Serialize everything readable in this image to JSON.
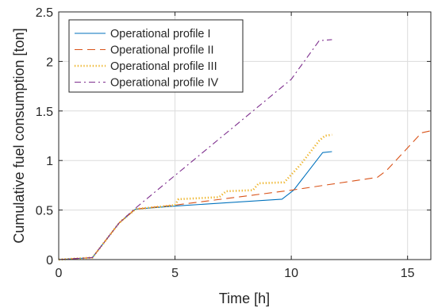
{
  "chart_data": {
    "type": "line",
    "xlabel": "Time [h]",
    "ylabel": "Cumulative fuel consumption [ton]",
    "xlim": [
      0,
      16
    ],
    "ylim": [
      0,
      2.5
    ],
    "xticks": [
      0,
      5,
      10,
      15
    ],
    "yticks": [
      0,
      0.5,
      1,
      1.5,
      2,
      2.5
    ],
    "xtick_labels": [
      "0",
      "5",
      "10",
      "15"
    ],
    "ytick_labels": [
      "0",
      "0.5",
      "1",
      "1.5",
      "2",
      "2.5"
    ],
    "grid": true,
    "legend_position": "top-left",
    "series": [
      {
        "name": "Operational profile I",
        "color": "#0072BD",
        "style": "solid",
        "points": [
          [
            0,
            0
          ],
          [
            1.45,
            0.02
          ],
          [
            2.6,
            0.37
          ],
          [
            3.3,
            0.51
          ],
          [
            5.0,
            0.54
          ],
          [
            9.6,
            0.61
          ],
          [
            10.1,
            0.7
          ],
          [
            11.35,
            1.08
          ],
          [
            11.75,
            1.09
          ]
        ]
      },
      {
        "name": "Operational profile II",
        "color": "#D95319",
        "style": "dashed",
        "points": [
          [
            0,
            0
          ],
          [
            1.45,
            0.02
          ],
          [
            2.6,
            0.37
          ],
          [
            3.3,
            0.51
          ],
          [
            5.0,
            0.55
          ],
          [
            10.0,
            0.7
          ],
          [
            13.7,
            0.83
          ],
          [
            14.1,
            0.9
          ],
          [
            15.6,
            1.28
          ],
          [
            16.0,
            1.3
          ]
        ]
      },
      {
        "name": "Operational profile III",
        "color": "#EDB120",
        "style": "dotted",
        "points": [
          [
            0,
            0
          ],
          [
            1.45,
            0.02
          ],
          [
            2.6,
            0.37
          ],
          [
            3.3,
            0.51
          ],
          [
            5.0,
            0.55
          ],
          [
            5.15,
            0.61
          ],
          [
            6.9,
            0.63
          ],
          [
            7.2,
            0.69
          ],
          [
            8.35,
            0.7
          ],
          [
            8.6,
            0.77
          ],
          [
            9.7,
            0.78
          ],
          [
            10.4,
            0.96
          ],
          [
            11.2,
            1.2
          ],
          [
            11.45,
            1.25
          ],
          [
            11.75,
            1.26
          ]
        ]
      },
      {
        "name": "Operational profile IV",
        "color": "#7E2F8E",
        "style": "dashdot",
        "points": [
          [
            0,
            0
          ],
          [
            1.45,
            0.02
          ],
          [
            2.6,
            0.37
          ],
          [
            3.25,
            0.51
          ],
          [
            10.0,
            1.82
          ],
          [
            11.2,
            2.21
          ],
          [
            11.75,
            2.22
          ]
        ]
      }
    ]
  }
}
